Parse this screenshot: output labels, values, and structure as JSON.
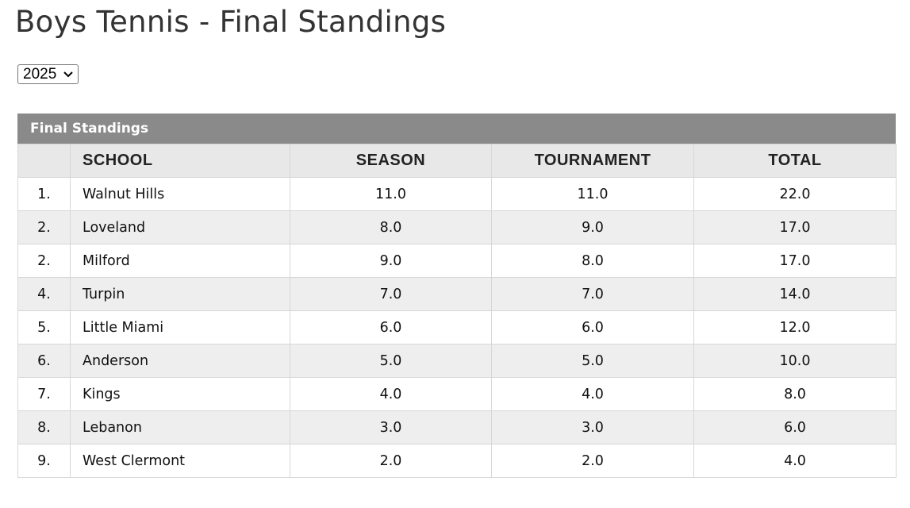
{
  "page": {
    "title": "Boys Tennis - Final Standings"
  },
  "year_select": {
    "selected": "2025",
    "icon": "chevron-down-icon"
  },
  "standings": {
    "caption": "Final Standings",
    "headers": {
      "rank": "",
      "school": "SCHOOL",
      "season": "SEASON",
      "tournament": "TOURNAMENT",
      "total": "TOTAL"
    },
    "rows": [
      {
        "rank": "1.",
        "school": "Walnut Hills",
        "season": "11.0",
        "tournament": "11.0",
        "total": "22.0"
      },
      {
        "rank": "2.",
        "school": "Loveland",
        "season": "8.0",
        "tournament": "9.0",
        "total": "17.0"
      },
      {
        "rank": "2.",
        "school": "Milford",
        "season": "9.0",
        "tournament": "8.0",
        "total": "17.0"
      },
      {
        "rank": "4.",
        "school": "Turpin",
        "season": "7.0",
        "tournament": "7.0",
        "total": "14.0"
      },
      {
        "rank": "5.",
        "school": "Little Miami",
        "season": "6.0",
        "tournament": "6.0",
        "total": "12.0"
      },
      {
        "rank": "6.",
        "school": "Anderson",
        "season": "5.0",
        "tournament": "5.0",
        "total": "10.0"
      },
      {
        "rank": "7.",
        "school": "Kings",
        "season": "4.0",
        "tournament": "4.0",
        "total": "8.0"
      },
      {
        "rank": "8.",
        "school": "Lebanon",
        "season": "3.0",
        "tournament": "3.0",
        "total": "6.0"
      },
      {
        "rank": "9.",
        "school": "West Clermont",
        "season": "2.0",
        "tournament": "2.0",
        "total": "4.0"
      }
    ]
  },
  "colors": {
    "caption_bg": "#8a8a8a",
    "header_bg": "#e8e8e8",
    "row_alt_bg": "#eeeeee",
    "border": "#d7d7d7"
  }
}
